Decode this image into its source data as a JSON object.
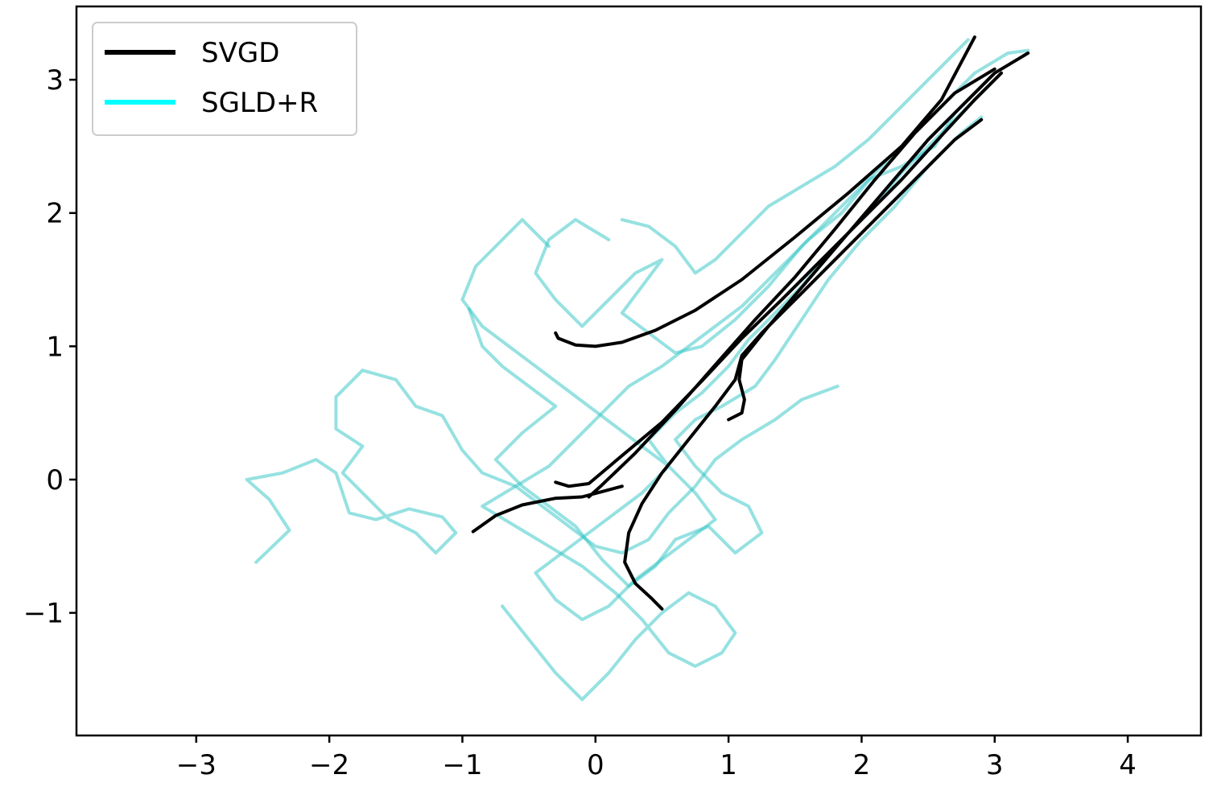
{
  "chart_data": {
    "type": "line",
    "title": "",
    "xlabel": "",
    "ylabel": "",
    "xlim": [
      -3.9,
      4.55
    ],
    "ylim": [
      -1.92,
      3.55
    ],
    "xticks": [
      -3,
      -2,
      -1,
      0,
      1,
      2,
      3,
      4
    ],
    "yticks": [
      -1,
      0,
      1,
      2,
      3
    ],
    "xtick_labels": [
      "−3",
      "−2",
      "−1",
      "0",
      "1",
      "2",
      "3",
      "4"
    ],
    "ytick_labels": [
      "−1",
      "0",
      "1",
      "2",
      "3"
    ],
    "grid": false,
    "legend": {
      "position": "top-left",
      "entries": [
        {
          "label": "SVGD",
          "color": "#000000"
        },
        {
          "label": "SGLD+R",
          "color": "#00ffff"
        }
      ]
    },
    "series": [
      {
        "name": "SVGD",
        "color": "#000000",
        "trajectories": [
          [
            [
              -0.3,
              1.1
            ],
            [
              -0.28,
              1.06
            ],
            [
              -0.15,
              1.01
            ],
            [
              0.0,
              1.0
            ],
            [
              0.2,
              1.03
            ],
            [
              0.45,
              1.12
            ],
            [
              0.75,
              1.27
            ],
            [
              1.1,
              1.5
            ],
            [
              1.5,
              1.82
            ],
            [
              1.9,
              2.15
            ],
            [
              2.3,
              2.5
            ],
            [
              2.6,
              2.85
            ],
            [
              2.85,
              3.32
            ]
          ],
          [
            [
              -0.92,
              -0.39
            ],
            [
              -0.75,
              -0.27
            ],
            [
              -0.55,
              -0.19
            ],
            [
              -0.3,
              -0.14
            ],
            [
              -0.1,
              -0.13
            ],
            [
              0.05,
              -0.09
            ],
            [
              0.2,
              -0.05
            ]
          ],
          [
            [
              -0.3,
              -0.02
            ],
            [
              -0.2,
              -0.05
            ],
            [
              -0.05,
              -0.03
            ],
            [
              0.2,
              0.18
            ],
            [
              0.5,
              0.43
            ],
            [
              0.8,
              0.74
            ],
            [
              1.1,
              1.06
            ],
            [
              1.4,
              1.35
            ],
            [
              1.7,
              1.65
            ],
            [
              2.0,
              1.95
            ],
            [
              2.3,
              2.25
            ],
            [
              2.6,
              2.58
            ],
            [
              2.85,
              2.85
            ],
            [
              3.05,
              3.05
            ]
          ],
          [
            [
              -0.05,
              -0.13
            ],
            [
              0.05,
              -0.04
            ],
            [
              0.3,
              0.2
            ],
            [
              0.6,
              0.52
            ],
            [
              0.9,
              0.86
            ],
            [
              1.2,
              1.2
            ],
            [
              1.5,
              1.52
            ],
            [
              1.8,
              1.88
            ],
            [
              2.1,
              2.25
            ],
            [
              2.4,
              2.6
            ],
            [
              2.7,
              2.9
            ],
            [
              3.0,
              3.08
            ]
          ],
          [
            [
              0.5,
              -0.97
            ],
            [
              0.42,
              -0.89
            ],
            [
              0.3,
              -0.78
            ],
            [
              0.22,
              -0.62
            ],
            [
              0.25,
              -0.4
            ],
            [
              0.35,
              -0.18
            ],
            [
              0.5,
              0.05
            ],
            [
              0.7,
              0.3
            ],
            [
              0.9,
              0.55
            ],
            [
              1.05,
              0.75
            ],
            [
              1.1,
              0.93
            ],
            [
              1.25,
              1.1
            ],
            [
              1.5,
              1.35
            ],
            [
              1.8,
              1.65
            ],
            [
              2.1,
              1.95
            ],
            [
              2.4,
              2.25
            ],
            [
              2.7,
              2.55
            ],
            [
              2.9,
              2.7
            ]
          ],
          [
            [
              1.0,
              0.45
            ],
            [
              1.1,
              0.5
            ],
            [
              1.12,
              0.6
            ],
            [
              1.08,
              0.75
            ],
            [
              1.1,
              0.9
            ],
            [
              1.3,
              1.15
            ],
            [
              1.6,
              1.5
            ],
            [
              1.9,
              1.85
            ],
            [
              2.2,
              2.2
            ],
            [
              2.5,
              2.55
            ],
            [
              2.8,
              2.85
            ],
            [
              3.0,
              3.05
            ],
            [
              3.25,
              3.2
            ]
          ]
        ]
      },
      {
        "name": "SGLD+R",
        "color": "#00ffff",
        "trajectories": [
          [
            [
              -2.55,
              -0.62
            ],
            [
              -2.3,
              -0.38
            ],
            [
              -2.45,
              -0.15
            ],
            [
              -2.62,
              0.0
            ],
            [
              -2.35,
              0.05
            ],
            [
              -2.1,
              0.15
            ],
            [
              -1.95,
              0.05
            ],
            [
              -1.85,
              -0.25
            ],
            [
              -1.65,
              -0.3
            ],
            [
              -1.4,
              -0.22
            ],
            [
              -1.15,
              -0.28
            ],
            [
              -1.05,
              -0.4
            ],
            [
              -1.2,
              -0.55
            ],
            [
              -1.35,
              -0.4
            ],
            [
              -1.55,
              -0.3
            ],
            [
              -1.75,
              -0.1
            ],
            [
              -1.9,
              0.05
            ],
            [
              -1.75,
              0.25
            ],
            [
              -1.95,
              0.38
            ],
            [
              -1.95,
              0.62
            ],
            [
              -1.75,
              0.82
            ],
            [
              -1.5,
              0.75
            ],
            [
              -1.35,
              0.55
            ],
            [
              -1.15,
              0.48
            ],
            [
              -1.0,
              0.22
            ],
            [
              -0.85,
              0.05
            ],
            [
              -0.6,
              -0.05
            ],
            [
              -0.4,
              -0.2
            ],
            [
              -0.2,
              -0.35
            ],
            [
              0.0,
              -0.5
            ],
            [
              0.2,
              -0.55
            ],
            [
              0.4,
              -0.45
            ],
            [
              0.55,
              -0.25
            ],
            [
              0.75,
              -0.05
            ],
            [
              0.9,
              0.15
            ],
            [
              1.1,
              0.3
            ],
            [
              1.35,
              0.45
            ],
            [
              1.55,
              0.6
            ],
            [
              1.82,
              0.7
            ]
          ],
          [
            [
              -0.7,
              -0.95
            ],
            [
              -0.5,
              -1.2
            ],
            [
              -0.3,
              -1.45
            ],
            [
              -0.1,
              -1.65
            ],
            [
              0.1,
              -1.45
            ],
            [
              0.3,
              -1.2
            ],
            [
              0.5,
              -1.0
            ],
            [
              0.7,
              -0.85
            ],
            [
              0.9,
              -0.95
            ],
            [
              1.05,
              -1.15
            ],
            [
              0.95,
              -1.3
            ],
            [
              0.75,
              -1.4
            ],
            [
              0.55,
              -1.3
            ],
            [
              0.35,
              -1.05
            ],
            [
              0.15,
              -0.85
            ],
            [
              -0.1,
              -0.65
            ],
            [
              -0.35,
              -0.5
            ],
            [
              -0.6,
              -0.35
            ],
            [
              -0.85,
              -0.2
            ],
            [
              -0.6,
              -0.05
            ],
            [
              -0.35,
              0.1
            ],
            [
              -0.15,
              0.3
            ],
            [
              0.05,
              0.5
            ],
            [
              0.25,
              0.7
            ],
            [
              0.5,
              0.85
            ],
            [
              0.7,
              1.0
            ],
            [
              0.9,
              1.15
            ],
            [
              1.1,
              1.3
            ],
            [
              1.35,
              1.55
            ],
            [
              1.6,
              1.8
            ],
            [
              1.85,
              2.0
            ],
            [
              2.1,
              2.3
            ],
            [
              2.35,
              2.55
            ],
            [
              2.6,
              2.8
            ],
            [
              2.85,
              3.05
            ],
            [
              3.1,
              3.2
            ],
            [
              3.25,
              3.22
            ]
          ],
          [
            [
              -0.95,
              1.28
            ],
            [
              -0.85,
              1.0
            ],
            [
              -0.7,
              0.85
            ],
            [
              -0.5,
              0.7
            ],
            [
              -0.3,
              0.55
            ],
            [
              -0.55,
              0.35
            ],
            [
              -0.75,
              0.15
            ],
            [
              -0.55,
              -0.05
            ],
            [
              -0.35,
              -0.2
            ],
            [
              -0.15,
              -0.35
            ],
            [
              0.05,
              -0.6
            ],
            [
              0.25,
              -0.8
            ],
            [
              0.45,
              -0.65
            ],
            [
              0.6,
              -0.45
            ],
            [
              0.85,
              -0.35
            ],
            [
              1.05,
              -0.55
            ],
            [
              1.25,
              -0.4
            ],
            [
              1.15,
              -0.2
            ],
            [
              0.95,
              -0.1
            ],
            [
              0.75,
              0.1
            ],
            [
              0.6,
              0.3
            ],
            [
              0.75,
              0.45
            ],
            [
              0.95,
              0.55
            ],
            [
              1.2,
              0.7
            ],
            [
              1.35,
              0.9
            ],
            [
              1.55,
              1.2
            ],
            [
              1.75,
              1.5
            ],
            [
              2.0,
              1.8
            ],
            [
              2.25,
              2.05
            ],
            [
              2.5,
              2.35
            ],
            [
              2.75,
              2.6
            ],
            [
              2.9,
              2.72
            ]
          ],
          [
            [
              -0.35,
              1.75
            ],
            [
              -0.55,
              1.95
            ],
            [
              -0.7,
              1.8
            ],
            [
              -0.9,
              1.6
            ],
            [
              -1.0,
              1.35
            ],
            [
              -0.85,
              1.15
            ],
            [
              -0.65,
              1.0
            ],
            [
              -0.45,
              0.85
            ],
            [
              -0.25,
              0.7
            ],
            [
              -0.05,
              0.55
            ],
            [
              0.15,
              0.4
            ],
            [
              0.35,
              0.25
            ],
            [
              0.55,
              0.1
            ],
            [
              0.35,
              -0.1
            ],
            [
              0.15,
              -0.25
            ],
            [
              -0.05,
              -0.4
            ],
            [
              -0.25,
              -0.55
            ],
            [
              -0.45,
              -0.7
            ],
            [
              -0.3,
              -0.9
            ],
            [
              -0.1,
              -1.05
            ],
            [
              0.1,
              -0.95
            ],
            [
              0.3,
              -0.75
            ],
            [
              0.5,
              -0.6
            ],
            [
              0.7,
              -0.45
            ],
            [
              0.9,
              -0.3
            ],
            [
              0.75,
              -0.1
            ],
            [
              0.55,
              0.1
            ],
            [
              0.4,
              0.3
            ],
            [
              0.6,
              0.5
            ],
            [
              0.8,
              0.65
            ],
            [
              1.0,
              0.85
            ],
            [
              1.15,
              1.05
            ],
            [
              1.35,
              1.25
            ],
            [
              1.55,
              1.45
            ],
            [
              1.8,
              1.75
            ],
            [
              2.05,
              2.0
            ],
            [
              2.3,
              2.3
            ],
            [
              2.55,
              2.55
            ],
            [
              2.8,
              2.8
            ],
            [
              2.95,
              2.95
            ]
          ],
          [
            [
              0.1,
              1.8
            ],
            [
              -0.15,
              1.95
            ],
            [
              -0.35,
              1.8
            ],
            [
              -0.45,
              1.55
            ],
            [
              -0.3,
              1.35
            ],
            [
              -0.1,
              1.15
            ],
            [
              0.1,
              1.35
            ],
            [
              0.3,
              1.55
            ],
            [
              0.5,
              1.65
            ],
            [
              0.35,
              1.45
            ],
            [
              0.2,
              1.25
            ],
            [
              0.4,
              1.1
            ],
            [
              0.6,
              0.95
            ],
            [
              0.8,
              1.0
            ],
            [
              1.05,
              1.2
            ],
            [
              1.3,
              1.45
            ],
            [
              1.55,
              1.75
            ],
            [
              1.8,
              2.0
            ],
            [
              2.05,
              2.25
            ],
            [
              2.3,
              2.35
            ],
            [
              2.55,
              2.5
            ],
            [
              2.7,
              2.75
            ],
            [
              2.9,
              2.95
            ],
            [
              3.0,
              3.05
            ]
          ],
          [
            [
              0.2,
              1.95
            ],
            [
              0.4,
              1.9
            ],
            [
              0.6,
              1.75
            ],
            [
              0.75,
              1.55
            ],
            [
              0.9,
              1.65
            ],
            [
              1.1,
              1.85
            ],
            [
              1.3,
              2.05
            ],
            [
              1.55,
              2.2
            ],
            [
              1.8,
              2.35
            ],
            [
              2.05,
              2.55
            ],
            [
              2.25,
              2.75
            ],
            [
              2.45,
              2.95
            ],
            [
              2.65,
              3.15
            ],
            [
              2.8,
              3.3
            ]
          ]
        ]
      }
    ]
  }
}
